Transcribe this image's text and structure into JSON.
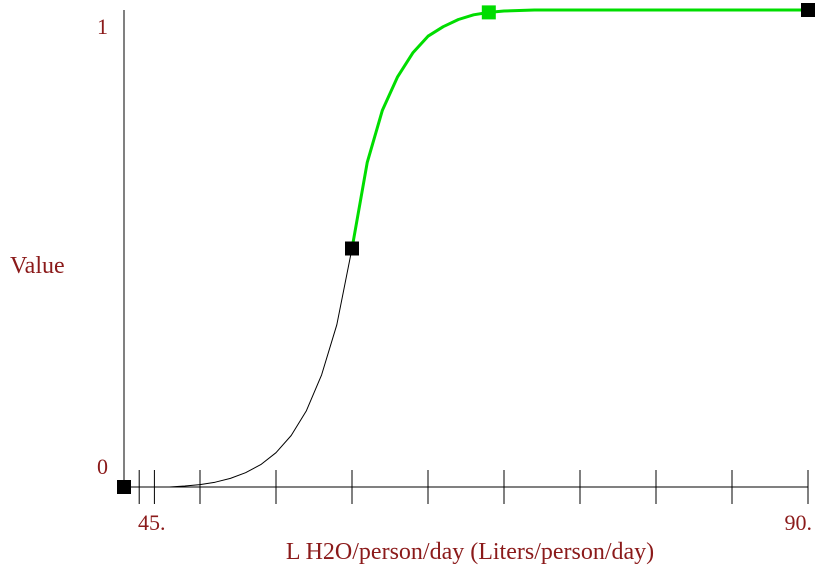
{
  "chart_data": {
    "type": "line",
    "xlabel": "L H2O/person/day (Liters/person/day)",
    "ylabel": "Value",
    "xlim": [
      45,
      90
    ],
    "ylim": [
      0,
      1
    ],
    "x_tick_labels": [
      "45.",
      "90."
    ],
    "y_tick_labels": [
      "0",
      "1"
    ],
    "x_minor_ticks": [
      46,
      47,
      50,
      55,
      60,
      65,
      70,
      75,
      80,
      85,
      90
    ],
    "curve": {
      "x": [
        45,
        46,
        47,
        48,
        49,
        50,
        51,
        52,
        53,
        54,
        55,
        56,
        57,
        58,
        59,
        60,
        61,
        62,
        63,
        64,
        65,
        66,
        67,
        68,
        69,
        70,
        71,
        72,
        73,
        74,
        75,
        76,
        77,
        78,
        80,
        82,
        84,
        86,
        88,
        90
      ],
      "y": [
        0,
        0,
        0,
        0,
        0.002,
        0.005,
        0.01,
        0.018,
        0.03,
        0.047,
        0.072,
        0.108,
        0.16,
        0.235,
        0.34,
        0.5,
        0.68,
        0.79,
        0.86,
        0.91,
        0.945,
        0.965,
        0.98,
        0.99,
        0.995,
        0.998,
        0.999,
        1,
        1,
        1,
        1,
        1,
        1,
        1,
        1,
        1,
        1,
        1,
        1,
        1
      ]
    },
    "highlight_from_x": 60,
    "points": [
      {
        "x": 45,
        "y": 0,
        "color": "#000000"
      },
      {
        "x": 60,
        "y": 0.5,
        "color": "#000000"
      },
      {
        "x": 69,
        "y": 0.995,
        "color": "#00dd00"
      },
      {
        "x": 90,
        "y": 1,
        "color": "#000000"
      }
    ],
    "colors": {
      "curve_base": "#000000",
      "curve_highlight": "#00dd00",
      "axis": "#000000",
      "text": "#8b1a1a"
    }
  }
}
